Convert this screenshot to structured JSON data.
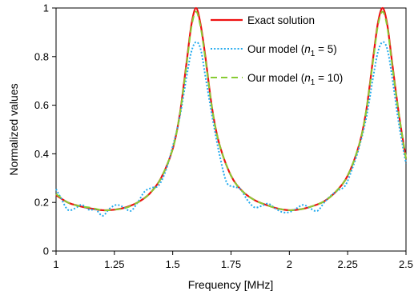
{
  "chart_data": {
    "type": "line",
    "title": "",
    "xlabel": "Frequency [MHz]",
    "ylabel": "Normalized values",
    "xlim": [
      1,
      2.5
    ],
    "ylim": [
      0,
      1
    ],
    "x_ticks": [
      1,
      1.25,
      1.5,
      1.75,
      2,
      2.25,
      2.5
    ],
    "x_tick_labels": [
      "1",
      "1.25",
      "1.5",
      "1.75",
      "2",
      "2.25",
      "2.5"
    ],
    "y_ticks": [
      0,
      0.2,
      0.4,
      0.6,
      0.8,
      1
    ],
    "y_tick_labels": [
      "0",
      "0.2",
      "0.4",
      "0.6",
      "0.8",
      "1"
    ],
    "grid": false,
    "legend_position": "top-right",
    "legend": [
      {
        "prefix": "Exact solution",
        "var": "",
        "sub": "",
        "suffix": ""
      },
      {
        "prefix": "Our model (",
        "var": "n",
        "sub": "1",
        "suffix": " = 5)"
      },
      {
        "prefix": "Our model (",
        "var": "n",
        "sub": "1",
        "suffix": " = 10)"
      }
    ],
    "series": [
      {
        "name": "Exact solution",
        "color": "#ee1111",
        "style": "solid",
        "x": [
          1.0,
          1.05,
          1.1,
          1.15,
          1.2,
          1.25,
          1.3,
          1.35,
          1.4,
          1.45,
          1.5,
          1.53,
          1.56,
          1.58,
          1.6,
          1.62,
          1.64,
          1.67,
          1.7,
          1.75,
          1.8,
          1.85,
          1.9,
          1.95,
          2.0,
          2.05,
          2.1,
          2.15,
          2.2,
          2.25,
          2.3,
          2.33,
          2.36,
          2.38,
          2.4,
          2.42,
          2.44,
          2.47,
          2.5
        ],
        "y": [
          0.23,
          0.2,
          0.185,
          0.175,
          0.168,
          0.17,
          0.18,
          0.2,
          0.235,
          0.3,
          0.42,
          0.56,
          0.78,
          0.93,
          1.0,
          0.93,
          0.8,
          0.58,
          0.44,
          0.31,
          0.245,
          0.21,
          0.19,
          0.175,
          0.168,
          0.172,
          0.185,
          0.205,
          0.245,
          0.31,
          0.44,
          0.58,
          0.8,
          0.94,
          1.0,
          0.93,
          0.78,
          0.56,
          0.38
        ]
      },
      {
        "name": "Our model (n1 = 5)",
        "color": "#22aaee",
        "style": "dotted",
        "x": [
          1.0,
          1.02,
          1.05,
          1.08,
          1.11,
          1.14,
          1.17,
          1.2,
          1.23,
          1.26,
          1.29,
          1.32,
          1.35,
          1.38,
          1.41,
          1.44,
          1.47,
          1.5,
          1.53,
          1.56,
          1.58,
          1.6,
          1.62,
          1.64,
          1.67,
          1.7,
          1.73,
          1.76,
          1.79,
          1.82,
          1.85,
          1.88,
          1.91,
          1.94,
          1.97,
          2.0,
          2.03,
          2.06,
          2.09,
          2.12,
          2.15,
          2.18,
          2.21,
          2.24,
          2.27,
          2.3,
          2.33,
          2.36,
          2.38,
          2.4,
          2.42,
          2.44,
          2.47,
          2.5
        ],
        "y": [
          0.255,
          0.22,
          0.17,
          0.175,
          0.19,
          0.17,
          0.17,
          0.145,
          0.175,
          0.19,
          0.18,
          0.165,
          0.2,
          0.245,
          0.26,
          0.27,
          0.33,
          0.43,
          0.55,
          0.72,
          0.82,
          0.86,
          0.83,
          0.72,
          0.55,
          0.4,
          0.285,
          0.265,
          0.255,
          0.21,
          0.18,
          0.185,
          0.195,
          0.175,
          0.16,
          0.16,
          0.175,
          0.19,
          0.175,
          0.165,
          0.2,
          0.23,
          0.25,
          0.27,
          0.34,
          0.43,
          0.55,
          0.72,
          0.82,
          0.86,
          0.83,
          0.72,
          0.52,
          0.36
        ]
      },
      {
        "name": "Our model (n1 = 10)",
        "color": "#88cc33",
        "style": "dashed",
        "x": [
          1.0,
          1.05,
          1.1,
          1.15,
          1.2,
          1.25,
          1.3,
          1.35,
          1.4,
          1.45,
          1.5,
          1.53,
          1.56,
          1.58,
          1.6,
          1.62,
          1.64,
          1.67,
          1.7,
          1.75,
          1.8,
          1.85,
          1.9,
          1.95,
          2.0,
          2.05,
          2.1,
          2.15,
          2.2,
          2.25,
          2.3,
          2.33,
          2.36,
          2.38,
          2.4,
          2.42,
          2.44,
          2.47,
          2.5
        ],
        "y": [
          0.235,
          0.2,
          0.185,
          0.178,
          0.168,
          0.17,
          0.178,
          0.2,
          0.235,
          0.3,
          0.42,
          0.56,
          0.77,
          0.92,
          0.985,
          0.92,
          0.79,
          0.58,
          0.44,
          0.31,
          0.245,
          0.21,
          0.19,
          0.175,
          0.168,
          0.172,
          0.185,
          0.205,
          0.245,
          0.31,
          0.44,
          0.58,
          0.79,
          0.93,
          0.985,
          0.92,
          0.77,
          0.56,
          0.38
        ]
      }
    ]
  }
}
